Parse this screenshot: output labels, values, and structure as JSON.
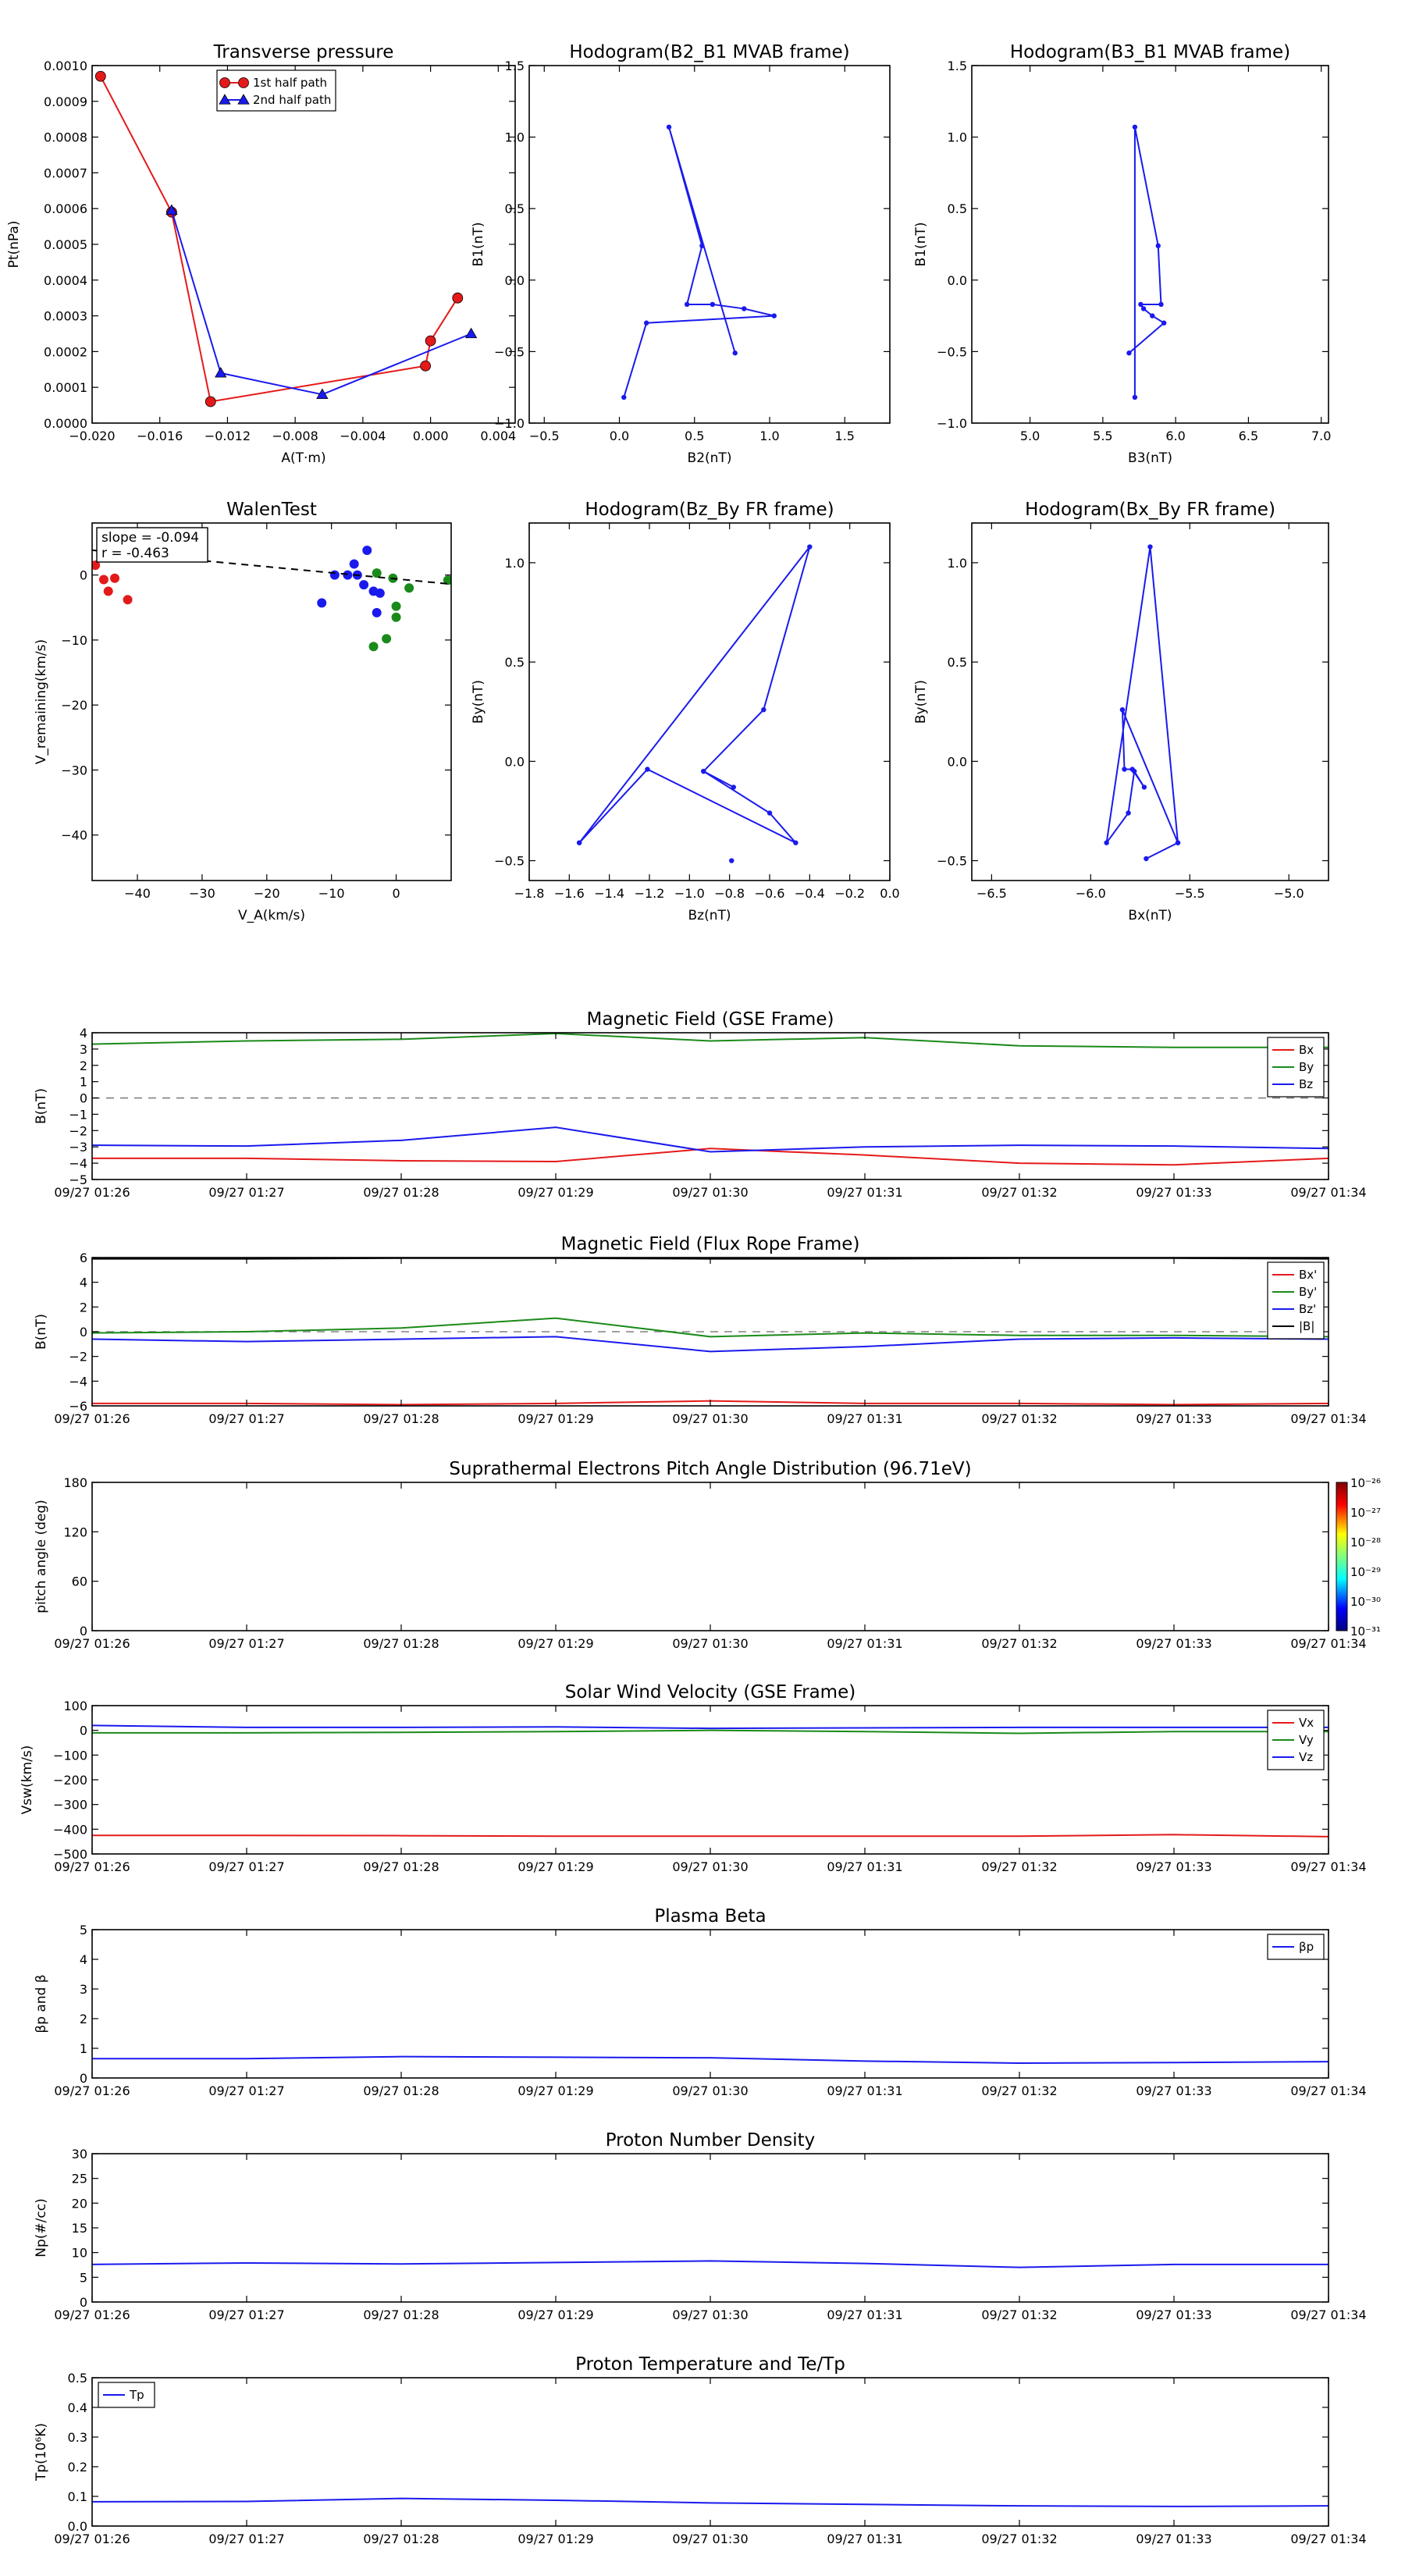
{
  "page": {
    "background": "#ffffff"
  },
  "colors": {
    "red": "#e41a1a",
    "green": "#1a8a1a",
    "blue": "#1a1aee",
    "black": "#000000",
    "gray": "#808080"
  },
  "time_ticks": [
    "09/27 01:26",
    "09/27 01:27",
    "09/27 01:28",
    "09/27 01:29",
    "09/27 01:30",
    "09/27 01:31",
    "09/27 01:32",
    "09/27 01:33",
    "09/27 01:34"
  ],
  "chart_data": [
    {
      "id": "pt",
      "type": "line",
      "title": "Transverse pressure",
      "xlabel": "A(T·m)",
      "ylabel": "Pt(nPa)",
      "xlim": [
        -0.02,
        0.005
      ],
      "ylim": [
        0,
        0.001
      ],
      "xticks": [
        -0.02,
        -0.016,
        -0.012,
        -0.008,
        -0.004,
        0.0,
        0.004
      ],
      "xtick_labels": [
        "−0.020",
        "−0.016",
        "−0.012",
        "−0.008",
        "−0.004",
        "0.000",
        "0.004"
      ],
      "yticks": [
        0,
        0.0001,
        0.0002,
        0.0003,
        0.0004,
        0.0005,
        0.0006,
        0.0007,
        0.0008,
        0.0009,
        0.001
      ],
      "ytick_labels": [
        "0.0000",
        "0.0001",
        "0.0002",
        "0.0003",
        "0.0004",
        "0.0005",
        "0.0006",
        "0.0007",
        "0.0008",
        "0.0009",
        "0.0010"
      ],
      "legend": "top-center",
      "series": [
        {
          "name": "1st half path",
          "color": "red",
          "marker": "circle",
          "x": [
            -0.0195,
            -0.0153,
            -0.013,
            -0.0003,
            0.0,
            0.0016
          ],
          "y": [
            0.00097,
            0.00059,
            6e-05,
            0.00016,
            0.00023,
            0.00035
          ]
        },
        {
          "name": "2nd half path",
          "color": "blue",
          "marker": "triangle",
          "x": [
            -0.0153,
            -0.0124,
            -0.0064,
            0.0024
          ],
          "y": [
            0.000595,
            0.00014,
            8e-05,
            0.00025
          ]
        }
      ]
    },
    {
      "id": "hodo1",
      "type": "line",
      "title": "Hodogram(B2_B1 MVAB frame)",
      "xlabel": "B2(nT)",
      "ylabel": "B1(nT)",
      "xlim": [
        -0.6,
        1.8
      ],
      "ylim": [
        -1.0,
        1.5
      ],
      "xticks": [
        -0.5,
        0.0,
        0.5,
        1.0,
        1.5
      ],
      "xtick_labels": [
        "−0.5",
        "0.0",
        "0.5",
        "1.0",
        "1.5"
      ],
      "yticks": [
        -1.0,
        -0.5,
        0.0,
        0.5,
        1.0,
        1.5
      ],
      "ytick_labels": [
        "−1.0",
        "−0.5",
        "0.0",
        "0.5",
        "1.0",
        "1.5"
      ],
      "series": [
        {
          "color": "blue",
          "marker": "dot",
          "x": [
            0.03,
            0.18,
            1.03,
            0.83,
            0.62,
            0.45,
            0.55,
            0.33,
            0.77
          ],
          "y": [
            -0.82,
            -0.3,
            -0.25,
            -0.2,
            -0.17,
            -0.17,
            0.24,
            1.07,
            -0.51
          ]
        }
      ]
    },
    {
      "id": "hodo2",
      "type": "line",
      "title": "Hodogram(B3_B1 MVAB frame)",
      "xlabel": "B3(nT)",
      "ylabel": "B1(nT)",
      "xlim": [
        4.6,
        7.05
      ],
      "ylim": [
        -1.0,
        1.5
      ],
      "xticks": [
        5.0,
        5.5,
        6.0,
        6.5,
        7.0
      ],
      "xtick_labels": [
        "5.0",
        "5.5",
        "6.0",
        "6.5",
        "7.0"
      ],
      "yticks": [
        -1.0,
        -0.5,
        0.0,
        0.5,
        1.0,
        1.5
      ],
      "ytick_labels": [
        "−1.0",
        "−0.5",
        "0.0",
        "0.5",
        "1.0",
        "1.5"
      ],
      "series": [
        {
          "color": "blue",
          "marker": "dot",
          "x": [
            5.72,
            5.72,
            5.88,
            5.9,
            5.76,
            5.78,
            5.84,
            5.92,
            5.68
          ],
          "y": [
            -0.82,
            1.07,
            0.24,
            -0.17,
            -0.17,
            -0.2,
            -0.25,
            -0.3,
            -0.51
          ]
        }
      ]
    },
    {
      "id": "walen",
      "type": "scatter",
      "title": "WalenTest",
      "xlabel": "V_A(km/s)",
      "ylabel": "V_remaining(km/s)",
      "xlim": [
        -47,
        8.5
      ],
      "ylim": [
        -47,
        8
      ],
      "xticks": [
        -40,
        -30,
        -20,
        -10,
        0
      ],
      "xtick_labels": [
        "−40",
        "−30",
        "−20",
        "−10",
        "0"
      ],
      "yticks": [
        -40,
        -30,
        -20,
        -10,
        0
      ],
      "ytick_labels": [
        "−40",
        "−30",
        "−20",
        "−10",
        "0"
      ],
      "annotation": [
        "slope = -0.094",
        "r = -0.463"
      ],
      "fit": {
        "slope": -0.094,
        "intercept": -0.6,
        "color": "black",
        "style": "dashed"
      },
      "series": [
        {
          "color": "red",
          "x": [
            -46.5,
            -45.2,
            -44.5,
            -43.5,
            -41.5
          ],
          "y": [
            1.5,
            -0.7,
            -2.5,
            -0.5,
            -3.8
          ]
        },
        {
          "color": "blue",
          "x": [
            -11.5,
            -9.5,
            -7.5,
            -6.5,
            -6.0,
            -5.0,
            -4.5,
            -3.5,
            -3.0,
            -2.5
          ],
          "y": [
            -4.3,
            0.0,
            0.0,
            1.7,
            0.0,
            -1.5,
            3.8,
            -2.5,
            -5.8,
            -2.8
          ]
        },
        {
          "color": "green",
          "x": [
            -3.5,
            -3.0,
            -1.5,
            -0.5,
            0.0,
            0.0,
            2.0,
            8.0
          ],
          "y": [
            -11.0,
            0.3,
            -9.8,
            -0.5,
            -4.8,
            -6.5,
            -2.0,
            -0.8
          ]
        }
      ]
    },
    {
      "id": "hodo3",
      "type": "line",
      "title": "Hodogram(Bz_By FR frame)",
      "xlabel": "Bz(nT)",
      "ylabel": "By(nT)",
      "xlim": [
        -1.8,
        0.0
      ],
      "ylim": [
        -0.6,
        1.2
      ],
      "xticks": [
        -1.8,
        -1.6,
        -1.4,
        -1.2,
        -1.0,
        -0.8,
        -0.6,
        -0.4,
        -0.2,
        0.0
      ],
      "xtick_labels": [
        "−1.8",
        "−1.6",
        "−1.4",
        "−1.2",
        "−1.0",
        "−0.8",
        "−0.6",
        "−0.4",
        "−0.2",
        "0.0"
      ],
      "yticks": [
        -0.5,
        0.0,
        0.5,
        1.0
      ],
      "ytick_labels": [
        "−0.5",
        "0.0",
        "0.5",
        "1.0"
      ],
      "series": [
        {
          "color": "blue",
          "marker": "dot",
          "x": [
            -1.55,
            -0.4,
            -0.63,
            -0.93,
            -0.78,
            -0.93,
            -0.6,
            -0.47,
            -1.21,
            -1.55
          ],
          "y": [
            -0.41,
            1.08,
            0.26,
            -0.05,
            -0.13,
            -0.05,
            -0.26,
            -0.41,
            -0.04,
            -0.41
          ]
        },
        {
          "color": "blue",
          "marker": "dot",
          "x": [
            -0.79
          ],
          "y": [
            -0.5
          ]
        }
      ]
    },
    {
      "id": "hodo4",
      "type": "line",
      "title": "Hodogram(Bx_By FR frame)",
      "xlabel": "Bx(nT)",
      "ylabel": "By(nT)",
      "xlim": [
        -6.6,
        -4.8
      ],
      "ylim": [
        -0.6,
        1.2
      ],
      "xticks": [
        -6.5,
        -6.0,
        -5.5,
        -5.0
      ],
      "xtick_labels": [
        "−6.5",
        "−6.0",
        "−5.5",
        "−5.0"
      ],
      "yticks": [
        -0.5,
        0.0,
        0.5,
        1.0
      ],
      "ytick_labels": [
        "−0.5",
        "0.0",
        "0.5",
        "1.0"
      ],
      "series": [
        {
          "color": "blue",
          "marker": "dot",
          "x": [
            -5.72,
            -5.56,
            -5.84,
            -5.83,
            -5.79,
            -5.73,
            -5.78,
            -5.81,
            -5.92,
            -5.7,
            -5.56
          ],
          "y": [
            -0.49,
            -0.41,
            0.26,
            -0.04,
            -0.04,
            -0.13,
            -0.05,
            -0.26,
            -0.41,
            1.08,
            -0.41
          ]
        }
      ]
    },
    {
      "id": "bgse",
      "type": "line",
      "title": "Magnetic Field (GSE Frame)",
      "ylabel": "B(nT)",
      "xlim": [
        0,
        8
      ],
      "ylim": [
        -5,
        4
      ],
      "yticks": [
        -5,
        -4,
        -3,
        -2,
        -1,
        0,
        1,
        2,
        3,
        4
      ],
      "ytick_labels": [
        "−5",
        "−4",
        "−3",
        "−2",
        "−1",
        "0",
        "1",
        "2",
        "3",
        "4"
      ],
      "zero_line": true,
      "legend": "top-right",
      "x": [
        0,
        1,
        2,
        3,
        4,
        5,
        6,
        7,
        8
      ],
      "series": [
        {
          "name": "Bx",
          "color": "red",
          "values": [
            -3.7,
            -3.7,
            -3.85,
            -3.9,
            -3.1,
            -3.5,
            -4.0,
            -4.1,
            -3.7
          ]
        },
        {
          "name": "By",
          "color": "green",
          "values": [
            3.3,
            3.5,
            3.6,
            3.95,
            3.5,
            3.7,
            3.2,
            3.1,
            3.1
          ]
        },
        {
          "name": "Bz",
          "color": "blue",
          "values": [
            -2.9,
            -2.95,
            -2.6,
            -1.8,
            -3.3,
            -3.0,
            -2.9,
            -2.95,
            -3.1
          ]
        }
      ]
    },
    {
      "id": "bfr",
      "type": "line",
      "title": "Magnetic Field (Flux Rope Frame)",
      "ylabel": "B(nT)",
      "xlim": [
        0,
        8
      ],
      "ylim": [
        -6,
        6
      ],
      "yticks": [
        -6,
        -4,
        -2,
        0,
        2,
        4,
        6
      ],
      "ytick_labels": [
        "−6",
        "−4",
        "−2",
        "0",
        "2",
        "4",
        "6"
      ],
      "zero_line": true,
      "legend": "top-right",
      "x": [
        0,
        1,
        2,
        3,
        4,
        5,
        6,
        7,
        8
      ],
      "series": [
        {
          "name": "Bx'",
          "color": "red",
          "values": [
            -5.8,
            -5.8,
            -5.9,
            -5.8,
            -5.6,
            -5.8,
            -5.8,
            -5.9,
            -5.8
          ]
        },
        {
          "name": "By'",
          "color": "green",
          "values": [
            -0.1,
            0.0,
            0.3,
            1.1,
            -0.4,
            -0.1,
            -0.3,
            -0.3,
            -0.4
          ]
        },
        {
          "name": "Bz'",
          "color": "blue",
          "values": [
            -0.6,
            -0.8,
            -0.6,
            -0.4,
            -1.6,
            -1.2,
            -0.6,
            -0.5,
            -0.6
          ]
        },
        {
          "name": "|B|",
          "color": "black",
          "values": [
            5.9,
            5.9,
            5.95,
            5.95,
            5.9,
            5.9,
            5.95,
            5.95,
            5.9
          ]
        }
      ]
    },
    {
      "id": "pad",
      "type": "heatmap",
      "title": "Suprathermal Electrons Pitch Angle Distribution (96.71eV)",
      "ylabel": "pitch angle (deg)",
      "xlim": [
        0,
        8
      ],
      "ylim": [
        0,
        180
      ],
      "yticks": [
        0,
        60,
        120,
        180
      ],
      "ytick_labels": [
        "0",
        "60",
        "120",
        "180"
      ],
      "colorbar_ticks": [
        "10⁻²⁶",
        "10⁻²⁷",
        "10⁻²⁸",
        "10⁻²⁹",
        "10⁻³⁰",
        "10⁻³¹"
      ]
    },
    {
      "id": "vsw",
      "type": "line",
      "title": "Solar Wind Velocity (GSE Frame)",
      "ylabel": "Vsw(km/s)",
      "xlim": [
        0,
        8
      ],
      "ylim": [
        -500,
        100
      ],
      "yticks": [
        -500,
        -400,
        -300,
        -200,
        -100,
        0,
        100
      ],
      "ytick_labels": [
        "−500",
        "−400",
        "−300",
        "−200",
        "−100",
        "0",
        "100"
      ],
      "legend": "top-right",
      "x": [
        0,
        1,
        2,
        3,
        4,
        5,
        6,
        7,
        8
      ],
      "series": [
        {
          "name": "Vx",
          "color": "red",
          "values": [
            -425,
            -425,
            -426,
            -428,
            -428,
            -428,
            -428,
            -422,
            -430
          ]
        },
        {
          "name": "Vy",
          "color": "green",
          "values": [
            -10,
            -10,
            -8,
            -5,
            0,
            -5,
            -12,
            -5,
            -5
          ]
        },
        {
          "name": "Vz",
          "color": "blue",
          "values": [
            20,
            12,
            12,
            14,
            8,
            10,
            12,
            12,
            12
          ]
        }
      ]
    },
    {
      "id": "beta",
      "type": "line",
      "title": "Plasma Beta",
      "ylabel": "βp and β",
      "xlim": [
        0,
        8
      ],
      "ylim": [
        0,
        5
      ],
      "yticks": [
        0,
        1,
        2,
        3,
        4,
        5
      ],
      "ytick_labels": [
        "0",
        "1",
        "2",
        "3",
        "4",
        "5"
      ],
      "legend": "top-right",
      "x": [
        0,
        1,
        2,
        3,
        4,
        5,
        6,
        7,
        8
      ],
      "series": [
        {
          "name": "βp",
          "color": "blue",
          "values": [
            0.65,
            0.65,
            0.72,
            0.7,
            0.68,
            0.57,
            0.5,
            0.52,
            0.55
          ]
        }
      ]
    },
    {
      "id": "np",
      "type": "line",
      "title": "Proton Number Density",
      "ylabel": "Np(#/cc)",
      "xlim": [
        0,
        8
      ],
      "ylim": [
        0,
        30
      ],
      "yticks": [
        0,
        5,
        10,
        15,
        20,
        25,
        30
      ],
      "ytick_labels": [
        "0",
        "5",
        "10",
        "15",
        "20",
        "25",
        "30"
      ],
      "x": [
        0,
        1,
        2,
        3,
        4,
        5,
        6,
        7,
        8
      ],
      "series": [
        {
          "color": "blue",
          "values": [
            7.6,
            7.9,
            7.7,
            8.0,
            8.3,
            7.8,
            7.0,
            7.6,
            7.6
          ]
        }
      ]
    },
    {
      "id": "tp",
      "type": "line",
      "title": "Proton Temperature and Te/Tp",
      "ylabel": "Tp(10⁶K)",
      "xlim": [
        0,
        8
      ],
      "ylim": [
        0,
        0.5
      ],
      "yticks": [
        0,
        0.1,
        0.2,
        0.3,
        0.4,
        0.5
      ],
      "ytick_labels": [
        "0.0",
        "0.1",
        "0.2",
        "0.3",
        "0.4",
        "0.5"
      ],
      "legend": "top-left",
      "x": [
        0,
        1,
        2,
        3,
        4,
        5,
        6,
        7,
        8
      ],
      "series": [
        {
          "name": "Tp",
          "color": "blue",
          "values": [
            0.082,
            0.083,
            0.093,
            0.087,
            0.078,
            0.073,
            0.068,
            0.066,
            0.068
          ]
        }
      ]
    }
  ]
}
